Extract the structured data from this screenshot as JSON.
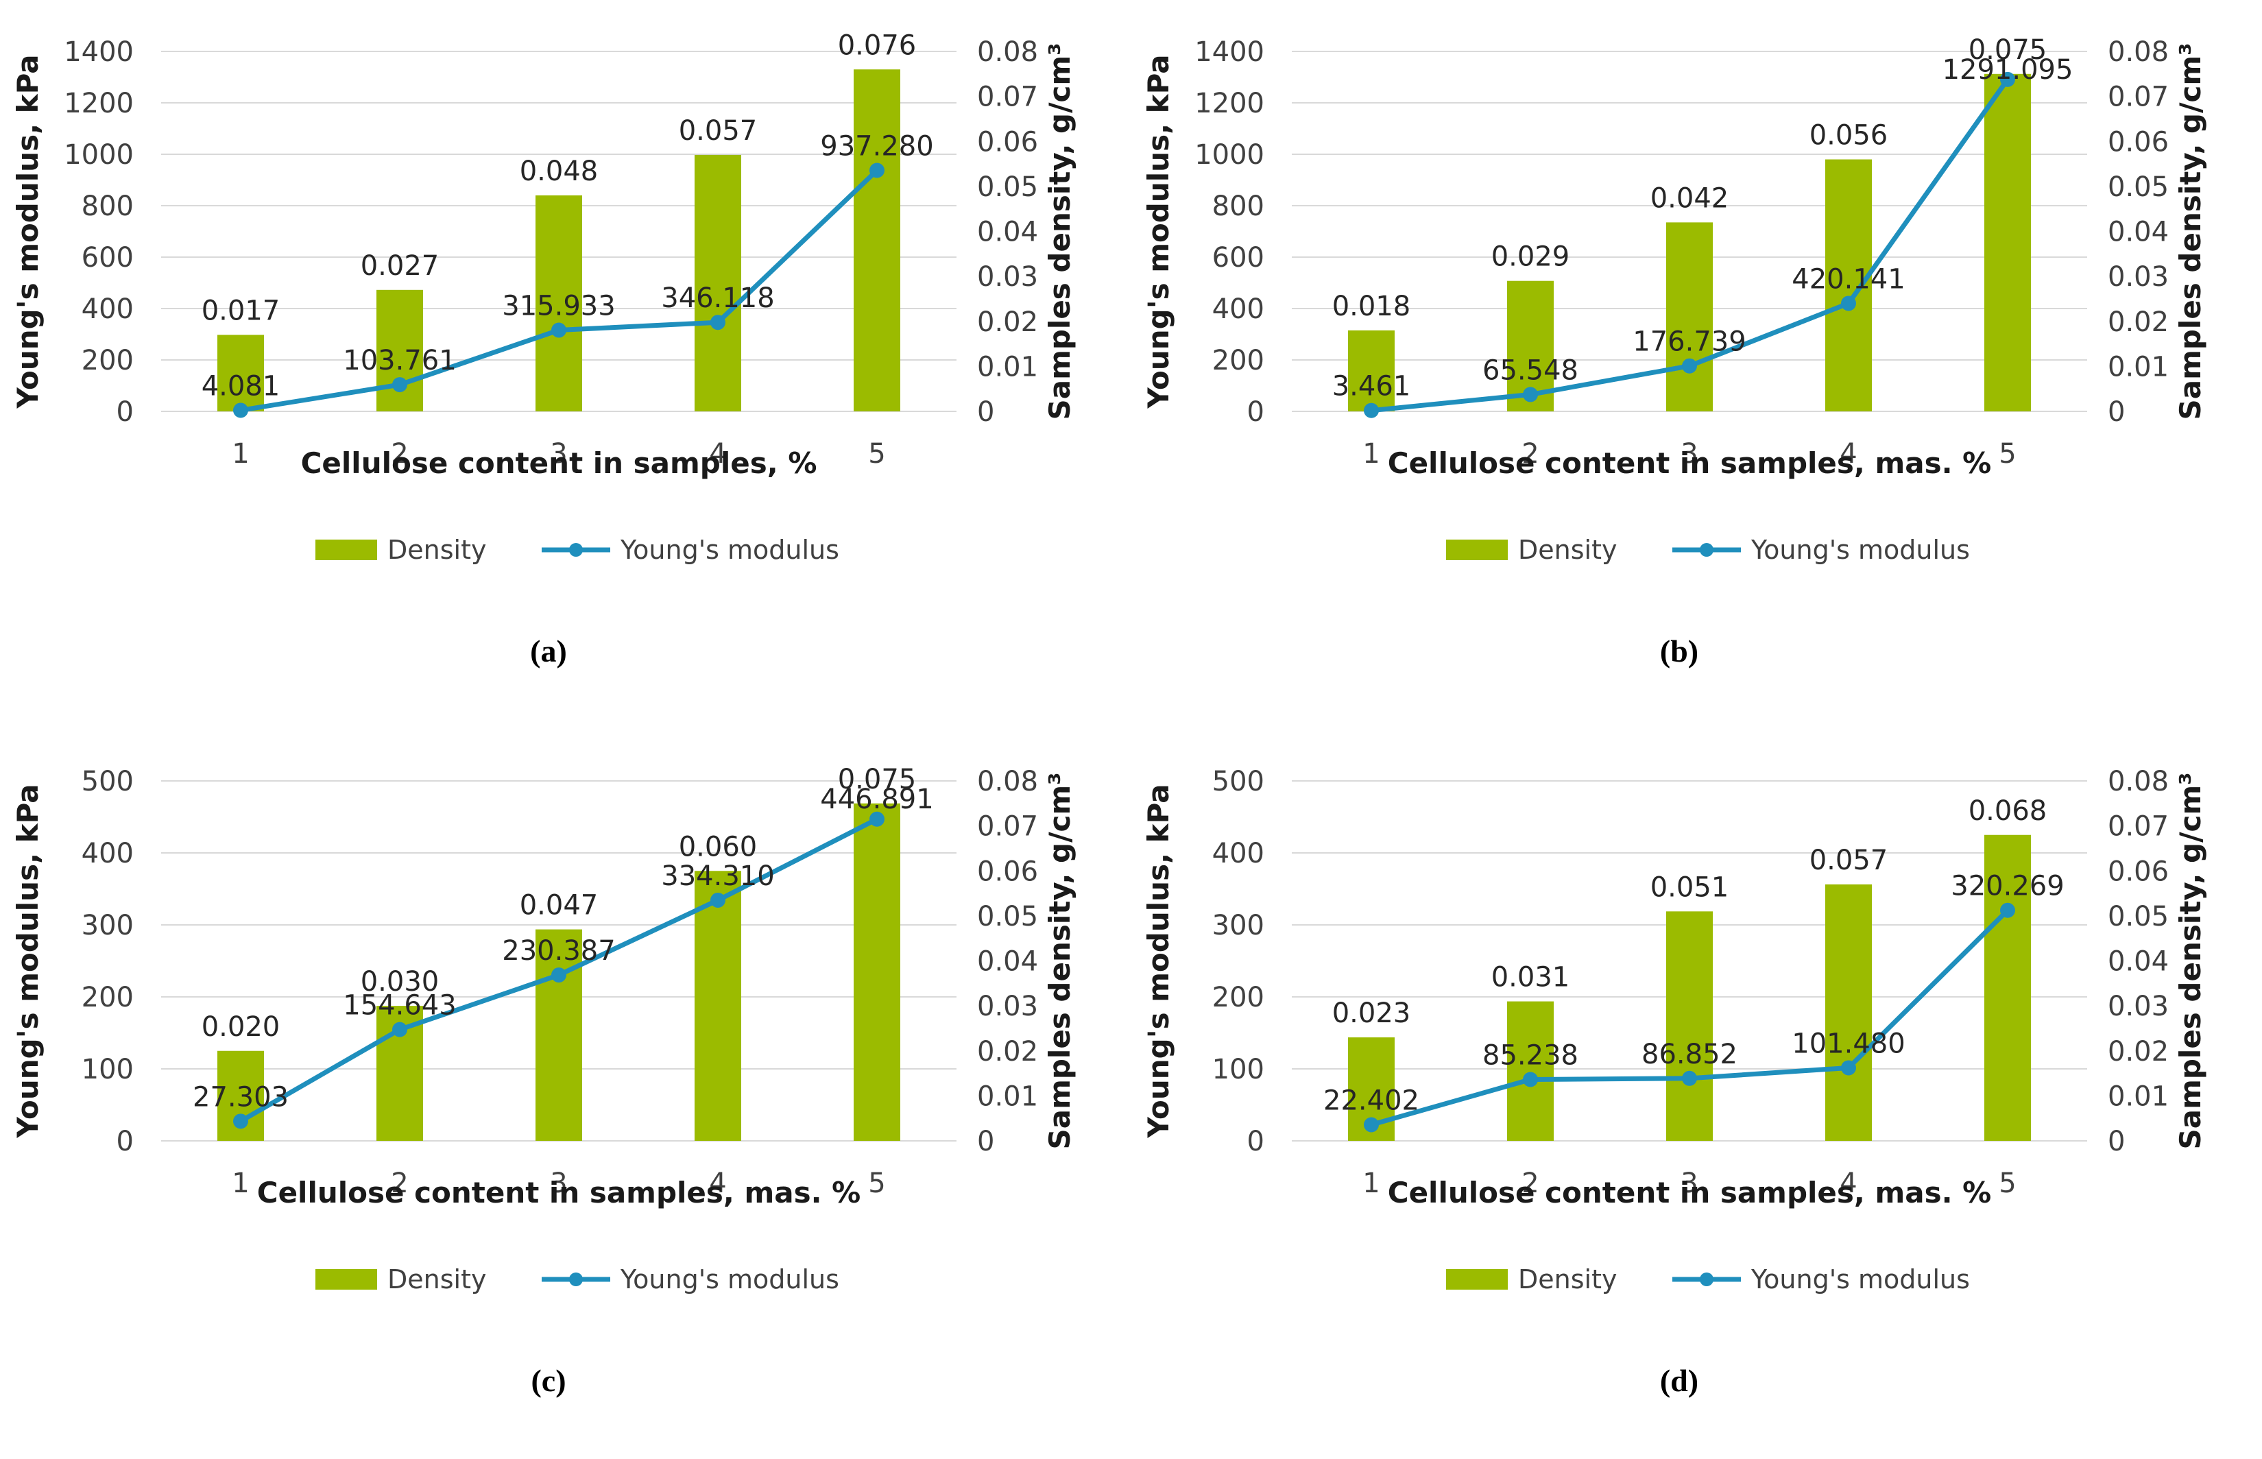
{
  "colors": {
    "bar": "#9bbb00",
    "line": "#1f8fbd",
    "grid": "#d9d9d9",
    "text": "#404040"
  },
  "legend": {
    "density": "Density",
    "youngs": "Young's modulus"
  },
  "chart_data": [
    {
      "type": "bar+line",
      "caption": "(a)",
      "categories": [
        "1",
        "2",
        "3",
        "4",
        "5"
      ],
      "xlabel": "Cellulose content in samples, %",
      "ylabel": "Young's modulus, kPa",
      "y2label": "Samples density, g/cm³",
      "ylim": [
        0,
        1400
      ],
      "yticks": [
        "0",
        "200",
        "400",
        "600",
        "800",
        "1000",
        "1200",
        "1400"
      ],
      "y2lim": [
        0,
        0.08
      ],
      "y2ticks": [
        "0",
        "0.01",
        "0.02",
        "0.03",
        "0.04",
        "0.05",
        "0.06",
        "0.07",
        "0.08"
      ],
      "series": [
        {
          "name": "Density",
          "kind": "bar",
          "axis": "secondary",
          "values": [
            0.017,
            0.027,
            0.048,
            0.057,
            0.076
          ],
          "labels": [
            "0.017",
            "0.027",
            "0.048",
            "0.057",
            "0.076"
          ]
        },
        {
          "name": "Young's modulus",
          "kind": "line",
          "axis": "primary",
          "values": [
            4.081,
            103.761,
            315.933,
            346.118,
            937.28
          ],
          "labels": [
            "4.081",
            "103.761",
            "315.933",
            "346.118",
            "937.280"
          ]
        }
      ]
    },
    {
      "type": "bar+line",
      "caption": "(b)",
      "categories": [
        "1",
        "2",
        "3",
        "4",
        "5"
      ],
      "xlabel": "Cellulose content in samples, mas. %",
      "ylabel": "Young's modulus, kPa",
      "y2label": "Samples density, g/cm³",
      "ylim": [
        0,
        1400
      ],
      "yticks": [
        "0",
        "200",
        "400",
        "600",
        "800",
        "1000",
        "1200",
        "1400"
      ],
      "y2lim": [
        0,
        0.08
      ],
      "y2ticks": [
        "0",
        "0.01",
        "0.02",
        "0.03",
        "0.04",
        "0.05",
        "0.06",
        "0.07",
        "0.08"
      ],
      "series": [
        {
          "name": "Density",
          "kind": "bar",
          "axis": "secondary",
          "values": [
            0.018,
            0.029,
            0.042,
            0.056,
            0.075
          ],
          "labels": [
            "0.018",
            "0.029",
            "0.042",
            "0.056",
            "0.075"
          ]
        },
        {
          "name": "Young's modulus",
          "kind": "line",
          "axis": "primary",
          "values": [
            3.461,
            65.548,
            176.739,
            420.141,
            1291.095
          ],
          "labels": [
            "3.461",
            "65.548",
            "176.739",
            "420.141",
            "1291.095"
          ]
        }
      ]
    },
    {
      "type": "bar+line",
      "caption": "(c)",
      "categories": [
        "1",
        "2",
        "3",
        "4",
        "5"
      ],
      "xlabel": "Cellulose content in samples, mas. %",
      "ylabel": "Young's modulus, kPa",
      "y2label": "Samples density, g/cm³",
      "ylim": [
        0,
        500
      ],
      "yticks": [
        "0",
        "100",
        "200",
        "300",
        "400",
        "500"
      ],
      "y2lim": [
        0,
        0.08
      ],
      "y2ticks": [
        "0",
        "0.01",
        "0.02",
        "0.03",
        "0.04",
        "0.05",
        "0.06",
        "0.07",
        "0.08"
      ],
      "series": [
        {
          "name": "Density",
          "kind": "bar",
          "axis": "secondary",
          "values": [
            0.02,
            0.03,
            0.047,
            0.06,
            0.075
          ],
          "labels": [
            "0.020",
            "0.030",
            "0.047",
            "0.060",
            "0.075"
          ]
        },
        {
          "name": "Young's modulus",
          "kind": "line",
          "axis": "primary",
          "values": [
            27.303,
            154.643,
            230.387,
            334.31,
            446.891
          ],
          "labels": [
            "27.303",
            "154.643",
            "230.387",
            "334.310",
            "446.891"
          ]
        }
      ]
    },
    {
      "type": "bar+line",
      "caption": "(d)",
      "categories": [
        "1",
        "2",
        "3",
        "4",
        "5"
      ],
      "xlabel": "Cellulose content in samples, mas. %",
      "ylabel": "Young's modulus, kPa",
      "y2label": "Samples density, g/cm³",
      "ylim": [
        0,
        500
      ],
      "yticks": [
        "0",
        "100",
        "200",
        "300",
        "400",
        "500"
      ],
      "y2lim": [
        0,
        0.08
      ],
      "y2ticks": [
        "0",
        "0.01",
        "0.02",
        "0.03",
        "0.04",
        "0.05",
        "0.06",
        "0.07",
        "0.08"
      ],
      "series": [
        {
          "name": "Density",
          "kind": "bar",
          "axis": "secondary",
          "values": [
            0.023,
            0.031,
            0.051,
            0.057,
            0.068
          ],
          "labels": [
            "0.023",
            "0.031",
            "0.051",
            "0.057",
            "0.068"
          ]
        },
        {
          "name": "Young's modulus",
          "kind": "line",
          "axis": "primary",
          "values": [
            22.402,
            85.238,
            86.852,
            101.48,
            320.269
          ],
          "labels": [
            "22.402",
            "85.238",
            "86.852",
            "101.480",
            "320.269"
          ]
        }
      ]
    }
  ]
}
